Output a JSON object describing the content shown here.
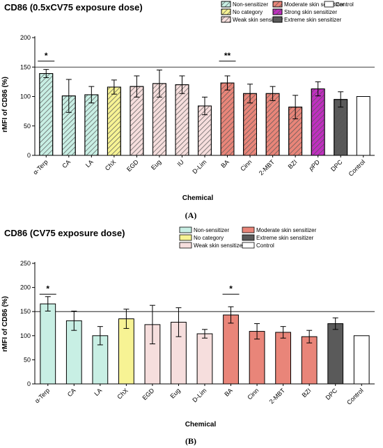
{
  "colors": {
    "Non-sensitizer": "#c8efe4",
    "No category": "#f7f394",
    "Weak skin sensitizer": "#f6dedd",
    "Moderate skin sensitizer": "#e98579",
    "Strong skin sensitizer": "#c02fc0",
    "Extreme skin sensitizer": "#5a5a5a",
    "Control": "#ffffff",
    "hatch_line": "#555555",
    "axis": "#000000",
    "refline": "#000000"
  },
  "chart_data": [
    {
      "type": "bar",
      "panel_label": "(A)",
      "title": "CD86 (0.5xCV75 exposure dose)",
      "xlabel": "Chemical",
      "ylabel": "rMFI of CD86 (%)",
      "ylim": [
        0,
        200
      ],
      "yticks": [
        "0",
        "50",
        "100",
        "150",
        "200"
      ],
      "reference_line": 150,
      "hatched": true,
      "legend_position": "top-right",
      "legend": [
        "Non-sensitizer",
        "No category",
        "Weak skin sensitizer",
        "Moderate skin sensitizer",
        "Strong skin sensitizer",
        "Extreme skin sensitizer",
        "Control"
      ],
      "categories": [
        "α-Terp",
        "CA",
        "LA",
        "ChX",
        "EGD",
        "Eug",
        "IU",
        "D-Lim",
        "BA",
        "Cinn",
        "2-MBT",
        "BZI",
        "pPD",
        "DPC",
        "Control"
      ],
      "values": [
        139,
        101,
        103,
        116,
        117,
        122,
        120,
        84,
        123,
        105,
        105,
        82,
        113,
        95,
        100
      ],
      "errors": [
        7,
        28,
        14,
        12,
        18,
        23,
        15,
        15,
        12,
        16,
        12,
        20,
        12,
        13,
        0
      ],
      "groups": [
        "Non-sensitizer",
        "Non-sensitizer",
        "Non-sensitizer",
        "No category",
        "Weak skin sensitizer",
        "Weak skin sensitizer",
        "Weak skin sensitizer",
        "Weak skin sensitizer",
        "Moderate skin sensitizer",
        "Moderate skin sensitizer",
        "Moderate skin sensitizer",
        "Moderate skin sensitizer",
        "Strong skin sensitizer",
        "Extreme skin sensitizer",
        "Control"
      ],
      "significance": [
        {
          "label": "*",
          "category": "α-Terp",
          "y": 160
        },
        {
          "label": "**",
          "category": "BA",
          "y": 160
        }
      ]
    },
    {
      "type": "bar",
      "panel_label": "(B)",
      "title": "CD86 (CV75 exposure dose)",
      "xlabel": "Chemical",
      "ylabel": "rMFI of CD86 (%)",
      "ylim": [
        0,
        250
      ],
      "yticks": [
        "0",
        "50",
        "100",
        "150",
        "200",
        "250"
      ],
      "reference_line": 150,
      "hatched": false,
      "legend_position": "top-right",
      "legend": [
        "Non-sensitizer",
        "No category",
        "Weak skin sensitizer",
        "Moderate skin sensitizer",
        "Extreme skin sensitizer",
        "Control"
      ],
      "categories": [
        "α-Terp",
        "CA",
        "LA",
        "ChX",
        "EGD",
        "Eug",
        "D-Lim",
        "BA",
        "Cinn",
        "2-MBT",
        "BZI",
        "DPC",
        "Control"
      ],
      "values": [
        166,
        131,
        100,
        135,
        123,
        128,
        104,
        143,
        109,
        107,
        98,
        125,
        100
      ],
      "errors": [
        15,
        20,
        19,
        20,
        40,
        30,
        9,
        17,
        16,
        12,
        13,
        12,
        0
      ],
      "groups": [
        "Non-sensitizer",
        "Non-sensitizer",
        "Non-sensitizer",
        "No category",
        "Weak skin sensitizer",
        "Weak skin sensitizer",
        "Weak skin sensitizer",
        "Moderate skin sensitizer",
        "Moderate skin sensitizer",
        "Moderate skin sensitizer",
        "Moderate skin sensitizer",
        "Extreme skin sensitizer",
        "Control"
      ],
      "significance": [
        {
          "label": "*",
          "category": "α-Terp",
          "y": 186
        },
        {
          "label": "*",
          "category": "BA",
          "y": 186
        }
      ]
    }
  ]
}
